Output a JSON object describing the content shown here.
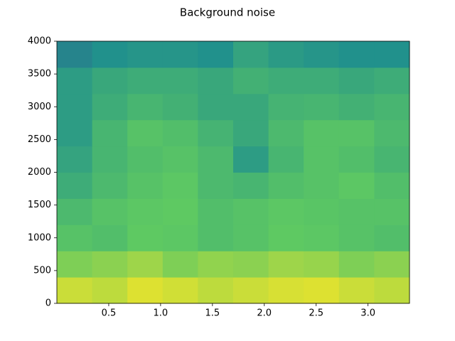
{
  "chart_data": {
    "type": "spectrogram",
    "title": "Background noise",
    "xbins": [
      0,
      0.34,
      0.68,
      1.02,
      1.36,
      1.7,
      2.04,
      2.38,
      2.72,
      3.06,
      3.4
    ],
    "ybins": [
      0,
      400,
      800,
      1200,
      1600,
      2000,
      2400,
      2800,
      3200,
      3600,
      4000
    ],
    "z": [
      [
        0.92,
        0.9,
        0.95,
        0.93,
        0.9,
        0.92,
        0.94,
        0.95,
        0.92,
        0.9
      ],
      [
        0.8,
        0.82,
        0.85,
        0.8,
        0.83,
        0.82,
        0.85,
        0.84,
        0.8,
        0.82
      ],
      [
        0.72,
        0.7,
        0.75,
        0.74,
        0.7,
        0.72,
        0.75,
        0.74,
        0.72,
        0.7
      ],
      [
        0.68,
        0.72,
        0.74,
        0.75,
        0.7,
        0.72,
        0.74,
        0.73,
        0.72,
        0.72
      ],
      [
        0.62,
        0.68,
        0.72,
        0.74,
        0.68,
        0.66,
        0.7,
        0.72,
        0.74,
        0.7
      ],
      [
        0.58,
        0.66,
        0.7,
        0.72,
        0.68,
        0.55,
        0.66,
        0.72,
        0.7,
        0.66
      ],
      [
        0.55,
        0.66,
        0.72,
        0.7,
        0.65,
        0.6,
        0.68,
        0.72,
        0.72,
        0.68
      ],
      [
        0.55,
        0.62,
        0.66,
        0.64,
        0.6,
        0.6,
        0.65,
        0.66,
        0.64,
        0.66
      ],
      [
        0.55,
        0.6,
        0.62,
        0.62,
        0.6,
        0.64,
        0.62,
        0.62,
        0.6,
        0.62
      ],
      [
        0.45,
        0.5,
        0.52,
        0.52,
        0.5,
        0.58,
        0.54,
        0.52,
        0.5,
        0.5
      ]
    ],
    "zlim": [
      0,
      1
    ],
    "colormap": [
      "#440154",
      "#3b528b",
      "#21918c",
      "#5ec962",
      "#fde725"
    ],
    "xlim": [
      0,
      3.4
    ],
    "ylim": [
      0,
      4000
    ],
    "xticks": [
      0.5,
      {
        "value": 1,
        "label": "1.0"
      },
      1.5,
      {
        "value": 2,
        "label": "2.0"
      },
      2.5,
      {
        "value": 3,
        "label": "3.0"
      }
    ],
    "yticks": [
      0,
      500,
      1000,
      1500,
      2000,
      2500,
      3000,
      3500,
      4000
    ]
  }
}
